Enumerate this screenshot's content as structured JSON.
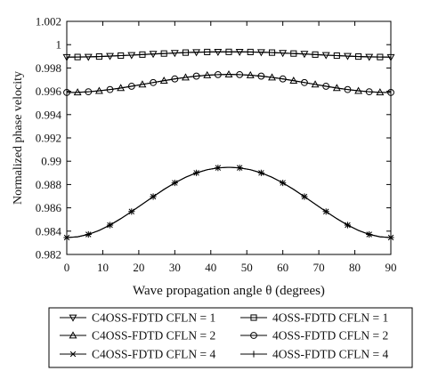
{
  "chart_data": {
    "type": "line",
    "title": "",
    "xlabel": "Wave propagation angle θ (degrees)",
    "ylabel": "Normalized phase velocity",
    "xlim": [
      0,
      90
    ],
    "ylim": [
      0.982,
      1.002
    ],
    "x_ticks": [
      "0",
      "10",
      "20",
      "30",
      "40",
      "50",
      "60",
      "70",
      "80",
      "90"
    ],
    "y_ticks": [
      "0.982",
      "0.984",
      "0.986",
      "0.988",
      "0.99",
      "0.992",
      "0.994",
      "0.996",
      "0.998",
      "1",
      "1.002"
    ],
    "grid": false,
    "legend_position": "bottom",
    "line_color": "#000000",
    "x": [
      0,
      3,
      6,
      9,
      12,
      15,
      18,
      21,
      24,
      27,
      30,
      33,
      36,
      39,
      42,
      45,
      48,
      51,
      54,
      57,
      60,
      63,
      66,
      69,
      72,
      75,
      78,
      81,
      84,
      87,
      90
    ],
    "series": [
      {
        "name": "C4OSS-FDTD CFLN = 1",
        "marker": "triangle-down",
        "offset": 0,
        "values": [
          0.99893,
          0.99894,
          0.99895,
          0.99898,
          0.99902,
          0.99906,
          0.9991,
          0.99915,
          0.9992,
          0.99924,
          0.99928,
          0.99932,
          0.99935,
          0.99937,
          0.99938,
          0.99938,
          0.99938,
          0.99937,
          0.99935,
          0.99932,
          0.99928,
          0.99924,
          0.9992,
          0.99915,
          0.9991,
          0.99906,
          0.99902,
          0.99898,
          0.99895,
          0.99894,
          0.99893
        ]
      },
      {
        "name": "4OSS-FDTD CFLN = 1",
        "marker": "square",
        "offset": 1,
        "values": [
          0.99893,
          0.99894,
          0.99895,
          0.99898,
          0.99902,
          0.99906,
          0.9991,
          0.99915,
          0.9992,
          0.99924,
          0.99928,
          0.99932,
          0.99935,
          0.99937,
          0.99938,
          0.99938,
          0.99938,
          0.99937,
          0.99935,
          0.99932,
          0.99928,
          0.99924,
          0.9992,
          0.99915,
          0.9991,
          0.99906,
          0.99902,
          0.99898,
          0.99895,
          0.99894,
          0.99893
        ]
      },
      {
        "name": "C4OSS-FDTD CFLN = 2",
        "marker": "triangle-up",
        "offset": 1,
        "values": [
          0.9959,
          0.99591,
          0.99596,
          0.99604,
          0.99615,
          0.99628,
          0.99643,
          0.99659,
          0.99675,
          0.99691,
          0.99706,
          0.99719,
          0.9973,
          0.99738,
          0.99743,
          0.99745,
          0.99743,
          0.99738,
          0.9973,
          0.99719,
          0.99706,
          0.99691,
          0.99675,
          0.99659,
          0.99643,
          0.99628,
          0.99615,
          0.99604,
          0.99596,
          0.99591,
          0.9959
        ]
      },
      {
        "name": "4OSS-FDTD CFLN = 2",
        "marker": "circle",
        "offset": 0,
        "values": [
          0.9959,
          0.99591,
          0.99596,
          0.99604,
          0.99615,
          0.99628,
          0.99643,
          0.99659,
          0.99675,
          0.99691,
          0.99706,
          0.99719,
          0.9973,
          0.99738,
          0.99743,
          0.99745,
          0.99743,
          0.99738,
          0.9973,
          0.99719,
          0.99706,
          0.99691,
          0.99675,
          0.99659,
          0.99643,
          0.99628,
          0.99615,
          0.99604,
          0.99596,
          0.99591,
          0.9959
        ]
      },
      {
        "name": "C4OSS-FDTD CFLN = 4",
        "marker": "x",
        "offset": 0,
        "values": [
          0.98345,
          0.98351,
          0.98372,
          0.98406,
          0.98452,
          0.98507,
          0.98568,
          0.98632,
          0.98696,
          0.98758,
          0.98814,
          0.98862,
          0.989,
          0.98927,
          0.98943,
          0.98948,
          0.98943,
          0.98927,
          0.989,
          0.98862,
          0.98814,
          0.98758,
          0.98696,
          0.98632,
          0.98568,
          0.98507,
          0.98452,
          0.98406,
          0.98372,
          0.98351,
          0.98345
        ]
      },
      {
        "name": "4OSS-FDTD CFLN = 4",
        "marker": "plus",
        "offset": 0,
        "values": [
          0.98345,
          0.98351,
          0.98372,
          0.98406,
          0.98452,
          0.98507,
          0.98568,
          0.98632,
          0.98696,
          0.98758,
          0.98814,
          0.98862,
          0.989,
          0.98927,
          0.98943,
          0.98948,
          0.98943,
          0.98927,
          0.989,
          0.98862,
          0.98814,
          0.98758,
          0.98696,
          0.98632,
          0.98568,
          0.98507,
          0.98452,
          0.98406,
          0.98372,
          0.98351,
          0.98345
        ]
      }
    ]
  }
}
